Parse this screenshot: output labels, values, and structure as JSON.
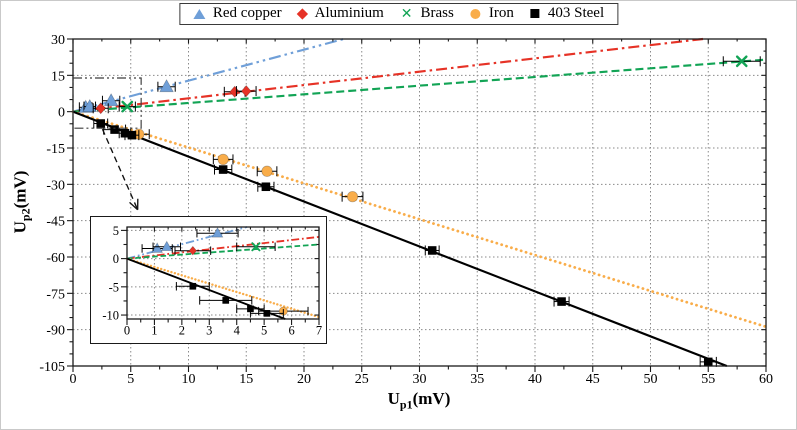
{
  "legend": {
    "items": [
      {
        "label": "Red copper",
        "marker": "triangle-icon",
        "color": "#6f9fd8"
      },
      {
        "label": "Aluminium",
        "marker": "diamond-icon",
        "color": "#e63226"
      },
      {
        "label": "Brass",
        "marker": "x-icon",
        "color": "#12a455"
      },
      {
        "label": "Iron",
        "marker": "circle-icon",
        "color": "#f9ad4a"
      },
      {
        "label": "403 Steel",
        "marker": "square-icon",
        "color": "#000000"
      }
    ]
  },
  "axes": {
    "x": {
      "base": "U",
      "sub": "p1",
      "unit": "(mV)"
    },
    "y": {
      "base": "U",
      "sub": "p2",
      "unit": "(mV)"
    }
  },
  "chart_data": {
    "type": "scatter",
    "title": "",
    "xlabel": "U_p1(mV)",
    "ylabel": "U_p2(mV)",
    "xlim": [
      0,
      60
    ],
    "ylim": [
      -105,
      30
    ],
    "xticks": [
      0,
      5,
      10,
      15,
      20,
      25,
      30,
      35,
      40,
      45,
      50,
      55,
      60
    ],
    "yticks": [
      30,
      15,
      0,
      -15,
      -30,
      -45,
      -60,
      -75,
      -90,
      -105
    ],
    "x_minor_step": 2.5,
    "y_minor_step": 5,
    "grid": "dotted",
    "legend_position": "top-center-outside",
    "series": [
      {
        "name": "Red copper",
        "color": "#6f9fd8",
        "marker": "triangle",
        "size": 12,
        "line_style": "dashdotdot",
        "fit_slope": 1.28,
        "points": [
          [
            1.1,
            1.8,
            0.55
          ],
          [
            1.45,
            2.1,
            0.5
          ],
          [
            3.3,
            4.5,
            0.75
          ],
          [
            8.1,
            10.3,
            0.75
          ]
        ]
      },
      {
        "name": "Aluminium",
        "color": "#e63226",
        "marker": "diamond",
        "size": 10,
        "line_style": "dashdot",
        "fit_slope": 0.55,
        "points": [
          [
            2.4,
            1.4,
            0.65
          ],
          [
            14.0,
            8.2,
            0.9
          ],
          [
            15.0,
            8.5,
            0.85
          ]
        ]
      },
      {
        "name": "Brass",
        "color": "#12a455",
        "marker": "x",
        "size": 11,
        "line_style": "dashed",
        "fit_slope": 0.358,
        "points": [
          [
            4.7,
            2.1,
            0.7
          ],
          [
            57.9,
            20.8,
            1.6
          ]
        ]
      },
      {
        "name": "Iron",
        "color": "#f9ad4a",
        "marker": "circle",
        "size": 10.5,
        "line_style": "dotted",
        "fit_slope": -1.48,
        "points": [
          [
            5.7,
            -9.3,
            0.9
          ],
          [
            13.0,
            -19.7,
            0.85
          ],
          [
            16.8,
            -24.6,
            0.85
          ],
          [
            24.2,
            -35.1,
            0.9
          ]
        ]
      },
      {
        "name": "403 Steel",
        "color": "#000000",
        "marker": "square",
        "size": 9.5,
        "line_style": "solid",
        "fit_slope": -1.855,
        "points": [
          [
            2.4,
            -4.9,
            0.6
          ],
          [
            3.6,
            -7.4,
            0.95
          ],
          [
            4.5,
            -8.9,
            0.5
          ],
          [
            5.1,
            -9.7,
            0.6
          ],
          [
            13.0,
            -23.9,
            0.75
          ],
          [
            16.7,
            -31.0,
            0.7
          ],
          [
            31.1,
            -57.3,
            0.6
          ],
          [
            42.3,
            -78.4,
            0.65
          ],
          [
            55.0,
            -103.3,
            0.7
          ]
        ]
      }
    ],
    "zoom_region": {
      "x0": 0,
      "x1": 5.9,
      "y0": -6.8,
      "y1": 13.9
    },
    "zoom_arrow": {
      "from": [
        2.55,
        -7.2
      ],
      "to": [
        5.6,
        -40.5
      ]
    },
    "inset": {
      "xlim": [
        0,
        7
      ],
      "ylim": [
        -10.7,
        5.6
      ],
      "xticks": [
        0,
        1,
        2,
        3,
        4,
        5,
        6,
        7
      ],
      "yticks": [
        5,
        0,
        -5,
        -10
      ],
      "x_minor_step": 0.5,
      "y_minor_step": 2.5
    }
  }
}
